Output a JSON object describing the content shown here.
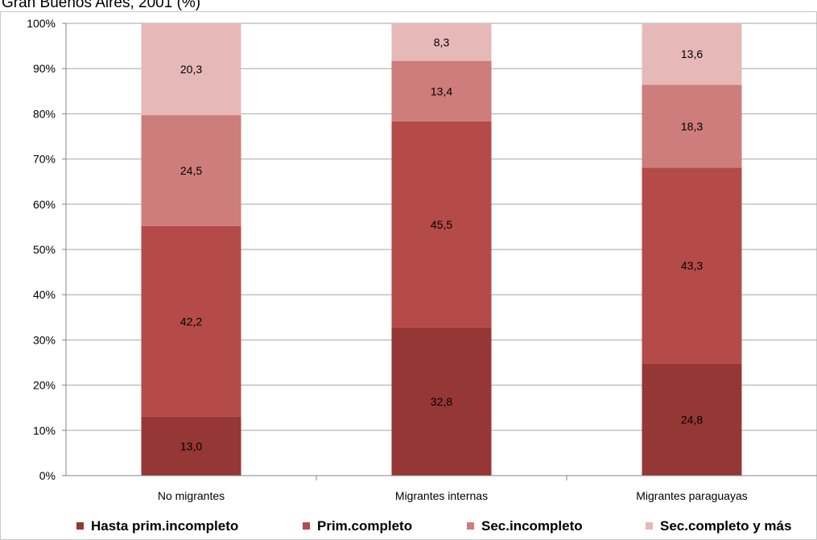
{
  "header": {
    "title": "Gran Buenos Aires, 2001 (%)"
  },
  "chart_data": {
    "type": "bar",
    "stacked": true,
    "percent": true,
    "categories": [
      "No migrantes",
      "Migrantes internas",
      "Migrantes paraguayas"
    ],
    "series": [
      {
        "name": "Hasta prim.incompleto",
        "values": [
          13.0,
          32.8,
          24.8
        ],
        "labels": [
          "13,0",
          "32,8",
          "24,8"
        ],
        "color": "#953735"
      },
      {
        "name": "Prim.completo",
        "values": [
          42.2,
          45.5,
          43.3
        ],
        "labels": [
          "42,2",
          "45,5",
          "43,3"
        ],
        "color": "#b44b49"
      },
      {
        "name": "Sec.incompleto",
        "values": [
          24.5,
          13.4,
          18.3
        ],
        "labels": [
          "24,5",
          "13,4",
          "18,3"
        ],
        "color": "#cd7d7b"
      },
      {
        "name": "Sec.completo  y más",
        "values": [
          20.3,
          8.3,
          13.6
        ],
        "labels": [
          "20,3",
          "8,3",
          "13,6"
        ],
        "color": "#e6b9b8"
      }
    ],
    "yticks": [
      "0%",
      "10%",
      "20%",
      "30%",
      "40%",
      "50%",
      "60%",
      "70%",
      "80%",
      "90%",
      "100%"
    ],
    "ylim": [
      0,
      100
    ],
    "legend_position": "bottom",
    "grid": true
  }
}
